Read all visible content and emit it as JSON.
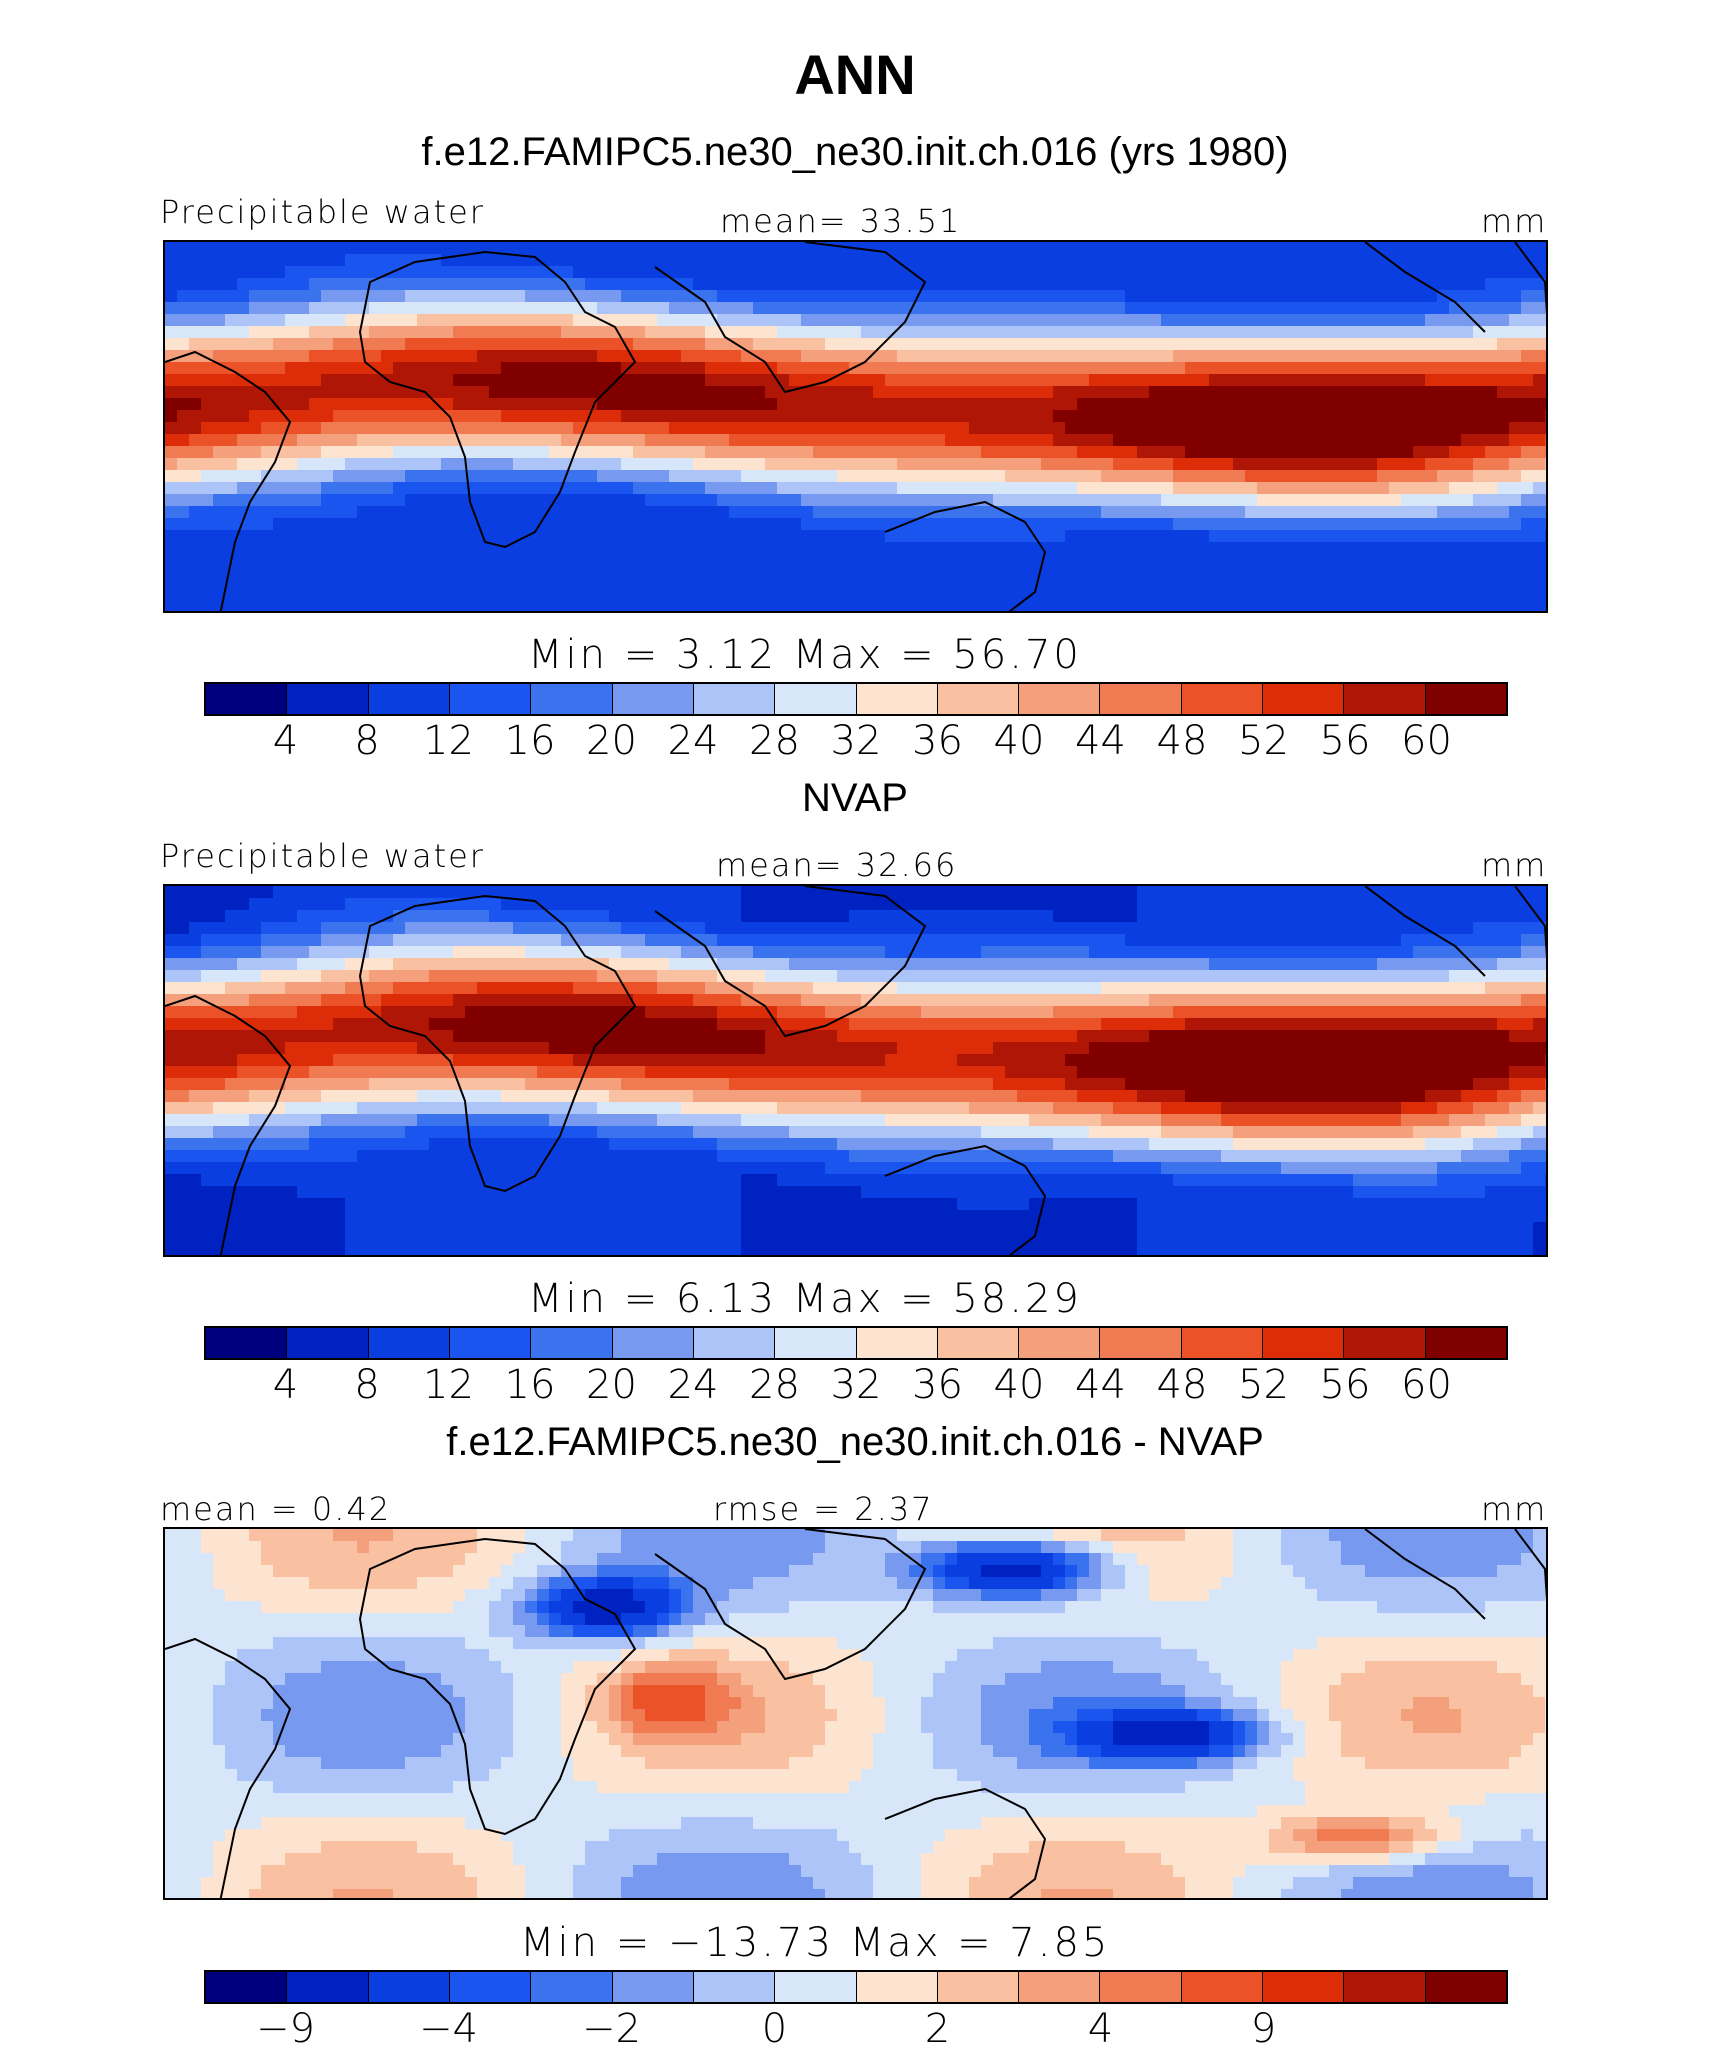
{
  "title": "ANN",
  "palette": [
    "#00007f",
    "#0022c0",
    "#0a3ee0",
    "#1a55f0",
    "#3b72ee",
    "#7799f0",
    "#adc4f8",
    "#d8e6fa",
    "#fde4d0",
    "#f9c0a2",
    "#f5a07c",
    "#f07a52",
    "#ec5228",
    "#dc2c08",
    "#b01606",
    "#800000"
  ],
  "panels": [
    {
      "title": "f.e12.FAMIPC5.ne30_ne30.init.ch.016 (yrs 1980)",
      "left_label": "Precipitable water",
      "center_label": "mean=   33.51",
      "right_label": "mm",
      "minmax": "Min  =     3.12  Max  =     56.70",
      "ticks": [
        "4",
        "8",
        "12",
        "16",
        "20",
        "24",
        "28",
        "32",
        "36",
        "40",
        "44",
        "48",
        "52",
        "56",
        "60"
      ],
      "field_type": "abs",
      "chart_data": {
        "type": "heatmap",
        "variable": "Precipitable water",
        "units": "mm",
        "mean": 33.51,
        "min": 3.12,
        "max": 56.7,
        "levels": [
          4,
          8,
          12,
          16,
          20,
          24,
          28,
          32,
          36,
          40,
          44,
          48,
          52,
          56,
          60
        ]
      }
    },
    {
      "title": "NVAP",
      "left_label": "Precipitable water",
      "center_label": "mean=   32.66",
      "right_label": "mm",
      "minmax": "Min  =     6.13  Max  =     58.29",
      "ticks": [
        "4",
        "8",
        "12",
        "16",
        "20",
        "24",
        "28",
        "32",
        "36",
        "40",
        "44",
        "48",
        "52",
        "56",
        "60"
      ],
      "field_type": "abs",
      "chart_data": {
        "type": "heatmap",
        "variable": "Precipitable water",
        "units": "mm",
        "mean": 32.66,
        "min": 6.13,
        "max": 58.29,
        "levels": [
          4,
          8,
          12,
          16,
          20,
          24,
          28,
          32,
          36,
          40,
          44,
          48,
          52,
          56,
          60
        ]
      }
    },
    {
      "title": "f.e12.FAMIPC5.ne30_ne30.init.ch.016 - NVAP",
      "left_label": "mean  =    0.42",
      "center_label": "rmse  =    2.37",
      "right_label": "mm",
      "minmax": "Min  = −13.73  Max  =      7.85",
      "ticks": [
        "−9",
        "−4",
        "−2",
        "0",
        "2",
        "4",
        "9"
      ],
      "field_type": "diff",
      "chart_data": {
        "type": "heatmap",
        "variable": "Precipitable water difference",
        "units": "mm",
        "mean": 0.42,
        "rmse": 2.37,
        "min": -13.73,
        "max": 7.85,
        "levels": [
          -9,
          -4,
          -2,
          0,
          2,
          4,
          9
        ]
      }
    }
  ]
}
